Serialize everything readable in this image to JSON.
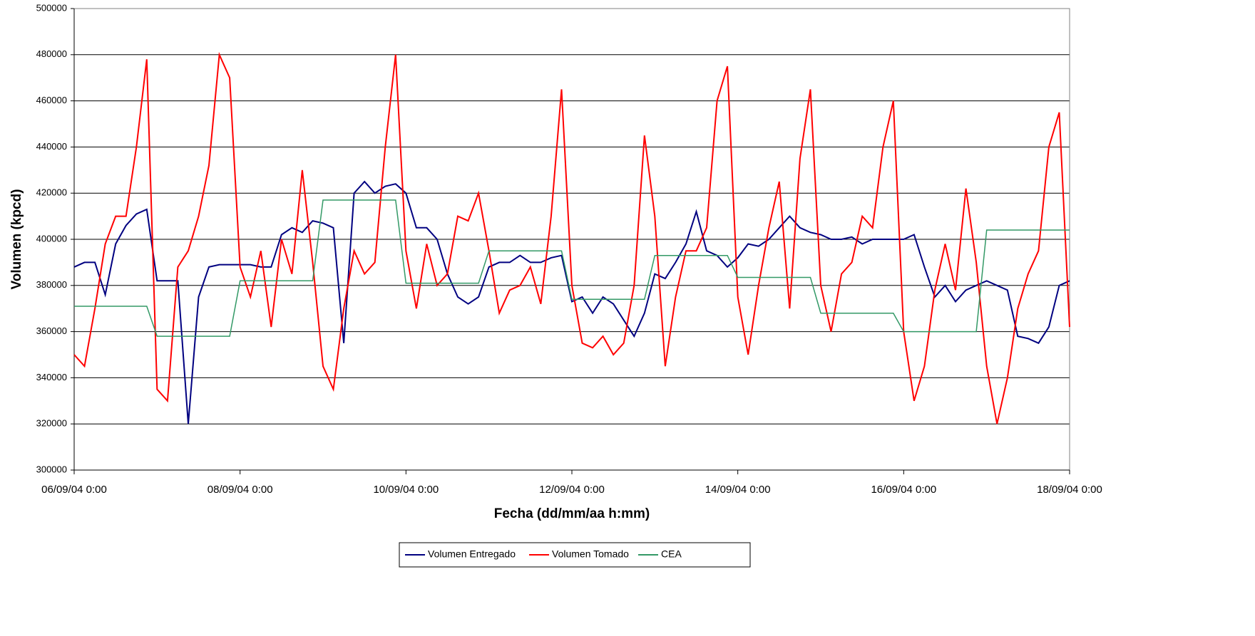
{
  "chart_data": {
    "type": "line",
    "ylabel": "Volumen (kpcd)",
    "xlabel": "Fecha (dd/mm/aa h:mm)",
    "x": [
      "06/09/04 0:00",
      "06/09/04 3:00",
      "06/09/04 6:00",
      "06/09/04 9:00",
      "06/09/04 12:00",
      "06/09/04 15:00",
      "06/09/04 18:00",
      "06/09/04 21:00",
      "07/09/04 0:00",
      "07/09/04 3:00",
      "07/09/04 6:00",
      "07/09/04 9:00",
      "07/09/04 12:00",
      "07/09/04 15:00",
      "07/09/04 18:00",
      "07/09/04 21:00",
      "08/09/04 0:00",
      "08/09/04 3:00",
      "08/09/04 6:00",
      "08/09/04 9:00",
      "08/09/04 12:00",
      "08/09/04 15:00",
      "08/09/04 18:00",
      "08/09/04 21:00",
      "09/09/04 0:00",
      "09/09/04 3:00",
      "09/09/04 6:00",
      "09/09/04 9:00",
      "09/09/04 12:00",
      "09/09/04 15:00",
      "09/09/04 18:00",
      "09/09/04 21:00",
      "10/09/04 0:00",
      "10/09/04 3:00",
      "10/09/04 6:00",
      "10/09/04 9:00",
      "10/09/04 12:00",
      "10/09/04 15:00",
      "10/09/04 18:00",
      "10/09/04 21:00",
      "11/09/04 0:00",
      "11/09/04 3:00",
      "11/09/04 6:00",
      "11/09/04 9:00",
      "11/09/04 12:00",
      "11/09/04 15:00",
      "11/09/04 18:00",
      "11/09/04 21:00",
      "12/09/04 0:00",
      "12/09/04 3:00",
      "12/09/04 6:00",
      "12/09/04 9:00",
      "12/09/04 12:00",
      "12/09/04 15:00",
      "12/09/04 18:00",
      "12/09/04 21:00",
      "13/09/04 0:00",
      "13/09/04 3:00",
      "13/09/04 6:00",
      "13/09/04 9:00",
      "13/09/04 12:00",
      "13/09/04 15:00",
      "13/09/04 18:00",
      "13/09/04 21:00",
      "14/09/04 0:00",
      "14/09/04 3:00",
      "14/09/04 6:00",
      "14/09/04 9:00",
      "14/09/04 12:00",
      "14/09/04 15:00",
      "14/09/04 18:00",
      "14/09/04 21:00",
      "15/09/04 0:00",
      "15/09/04 3:00",
      "15/09/04 6:00",
      "15/09/04 9:00",
      "15/09/04 12:00",
      "15/09/04 15:00",
      "15/09/04 18:00",
      "15/09/04 21:00",
      "16/09/04 0:00",
      "16/09/04 3:00",
      "16/09/04 6:00",
      "16/09/04 9:00",
      "16/09/04 12:00",
      "16/09/04 15:00",
      "16/09/04 18:00",
      "16/09/04 21:00",
      "17/09/04 0:00",
      "17/09/04 3:00",
      "17/09/04 6:00",
      "17/09/04 9:00",
      "17/09/04 12:00",
      "17/09/04 15:00",
      "17/09/04 18:00",
      "17/09/04 21:00",
      "18/09/04 0:00"
    ],
    "series": [
      {
        "name": "Volumen Entregado",
        "color": "#000080",
        "values": [
          388000,
          390000,
          390000,
          376000,
          398000,
          406000,
          411000,
          413000,
          382000,
          382000,
          382000,
          320000,
          375000,
          388000,
          389000,
          389000,
          389000,
          389000,
          388000,
          388000,
          402000,
          405000,
          403000,
          408000,
          407000,
          405000,
          355000,
          420000,
          425000,
          420000,
          423000,
          424000,
          420000,
          405000,
          405000,
          400000,
          385000,
          375000,
          372000,
          375000,
          388000,
          390000,
          390000,
          393000,
          390000,
          390000,
          392000,
          393000,
          373000,
          375000,
          368000,
          375000,
          372000,
          365000,
          358000,
          368000,
          385000,
          383000,
          390000,
          398000,
          412000,
          395000,
          393000,
          388000,
          392000,
          398000,
          397000,
          400000,
          405000,
          410000,
          405000,
          403000,
          402000,
          400000,
          400000,
          401000,
          398000,
          400000,
          400000,
          400000,
          400000,
          402000,
          388000,
          375000,
          380000,
          373000,
          378000,
          380000,
          382000,
          380000,
          378000,
          358000,
          357000,
          355000,
          362000,
          380000,
          382000
        ]
      },
      {
        "name": "Volumen Tomado",
        "color": "#ff0000",
        "values": [
          350000,
          345000,
          370000,
          398000,
          410000,
          410000,
          440000,
          478000,
          335000,
          330000,
          388000,
          395000,
          410000,
          432000,
          480000,
          470000,
          388000,
          375000,
          395000,
          362000,
          400000,
          385000,
          430000,
          390000,
          345000,
          335000,
          370000,
          395000,
          385000,
          390000,
          440000,
          480000,
          395000,
          370000,
          398000,
          380000,
          385000,
          410000,
          408000,
          420000,
          395000,
          368000,
          378000,
          380000,
          388000,
          372000,
          410000,
          465000,
          380000,
          355000,
          353000,
          358000,
          350000,
          355000,
          380000,
          445000,
          410000,
          345000,
          375000,
          395000,
          395000,
          405000,
          460000,
          475000,
          375000,
          350000,
          380000,
          405000,
          425000,
          370000,
          435000,
          465000,
          380000,
          360000,
          385000,
          390000,
          410000,
          405000,
          440000,
          460000,
          360000,
          330000,
          345000,
          378000,
          398000,
          378000,
          422000,
          390000,
          345000,
          320000,
          340000,
          370000,
          385000,
          395000,
          440000,
          455000,
          362000
        ]
      },
      {
        "name": "CEA",
        "color": "#339966",
        "values": [
          371000,
          371000,
          371000,
          371000,
          371000,
          371000,
          371000,
          371000,
          358000,
          358000,
          358000,
          358000,
          358000,
          358000,
          358000,
          358000,
          382000,
          382000,
          382000,
          382000,
          382000,
          382000,
          382000,
          382000,
          417000,
          417000,
          417000,
          417000,
          417000,
          417000,
          417000,
          417000,
          381000,
          381000,
          381000,
          381000,
          381000,
          381000,
          381000,
          381000,
          395000,
          395000,
          395000,
          395000,
          395000,
          395000,
          395000,
          395000,
          374000,
          374000,
          374000,
          374000,
          374000,
          374000,
          374000,
          374000,
          393000,
          393000,
          393000,
          393000,
          393000,
          393000,
          393000,
          393000,
          383500,
          383500,
          383500,
          383500,
          383500,
          383500,
          383500,
          383500,
          368000,
          368000,
          368000,
          368000,
          368000,
          368000,
          368000,
          368000,
          360000,
          360000,
          360000,
          360000,
          360000,
          360000,
          360000,
          360000,
          404000,
          404000,
          404000,
          404000,
          404000,
          404000,
          404000,
          404000,
          404000
        ]
      }
    ],
    "xlim": [
      "06/09/04 0:00",
      "18/09/04 0:00"
    ],
    "xticks": [
      "06/09/04 0:00",
      "08/09/04 0:00",
      "10/09/04 0:00",
      "12/09/04 0:00",
      "14/09/04 0:00",
      "16/09/04 0:00",
      "18/09/04 0:00"
    ],
    "ylim": [
      300000,
      500000
    ],
    "yticks": [
      300000,
      320000,
      340000,
      360000,
      380000,
      400000,
      420000,
      440000,
      460000,
      480000,
      500000
    ],
    "grid": true,
    "legend": "bottom"
  }
}
